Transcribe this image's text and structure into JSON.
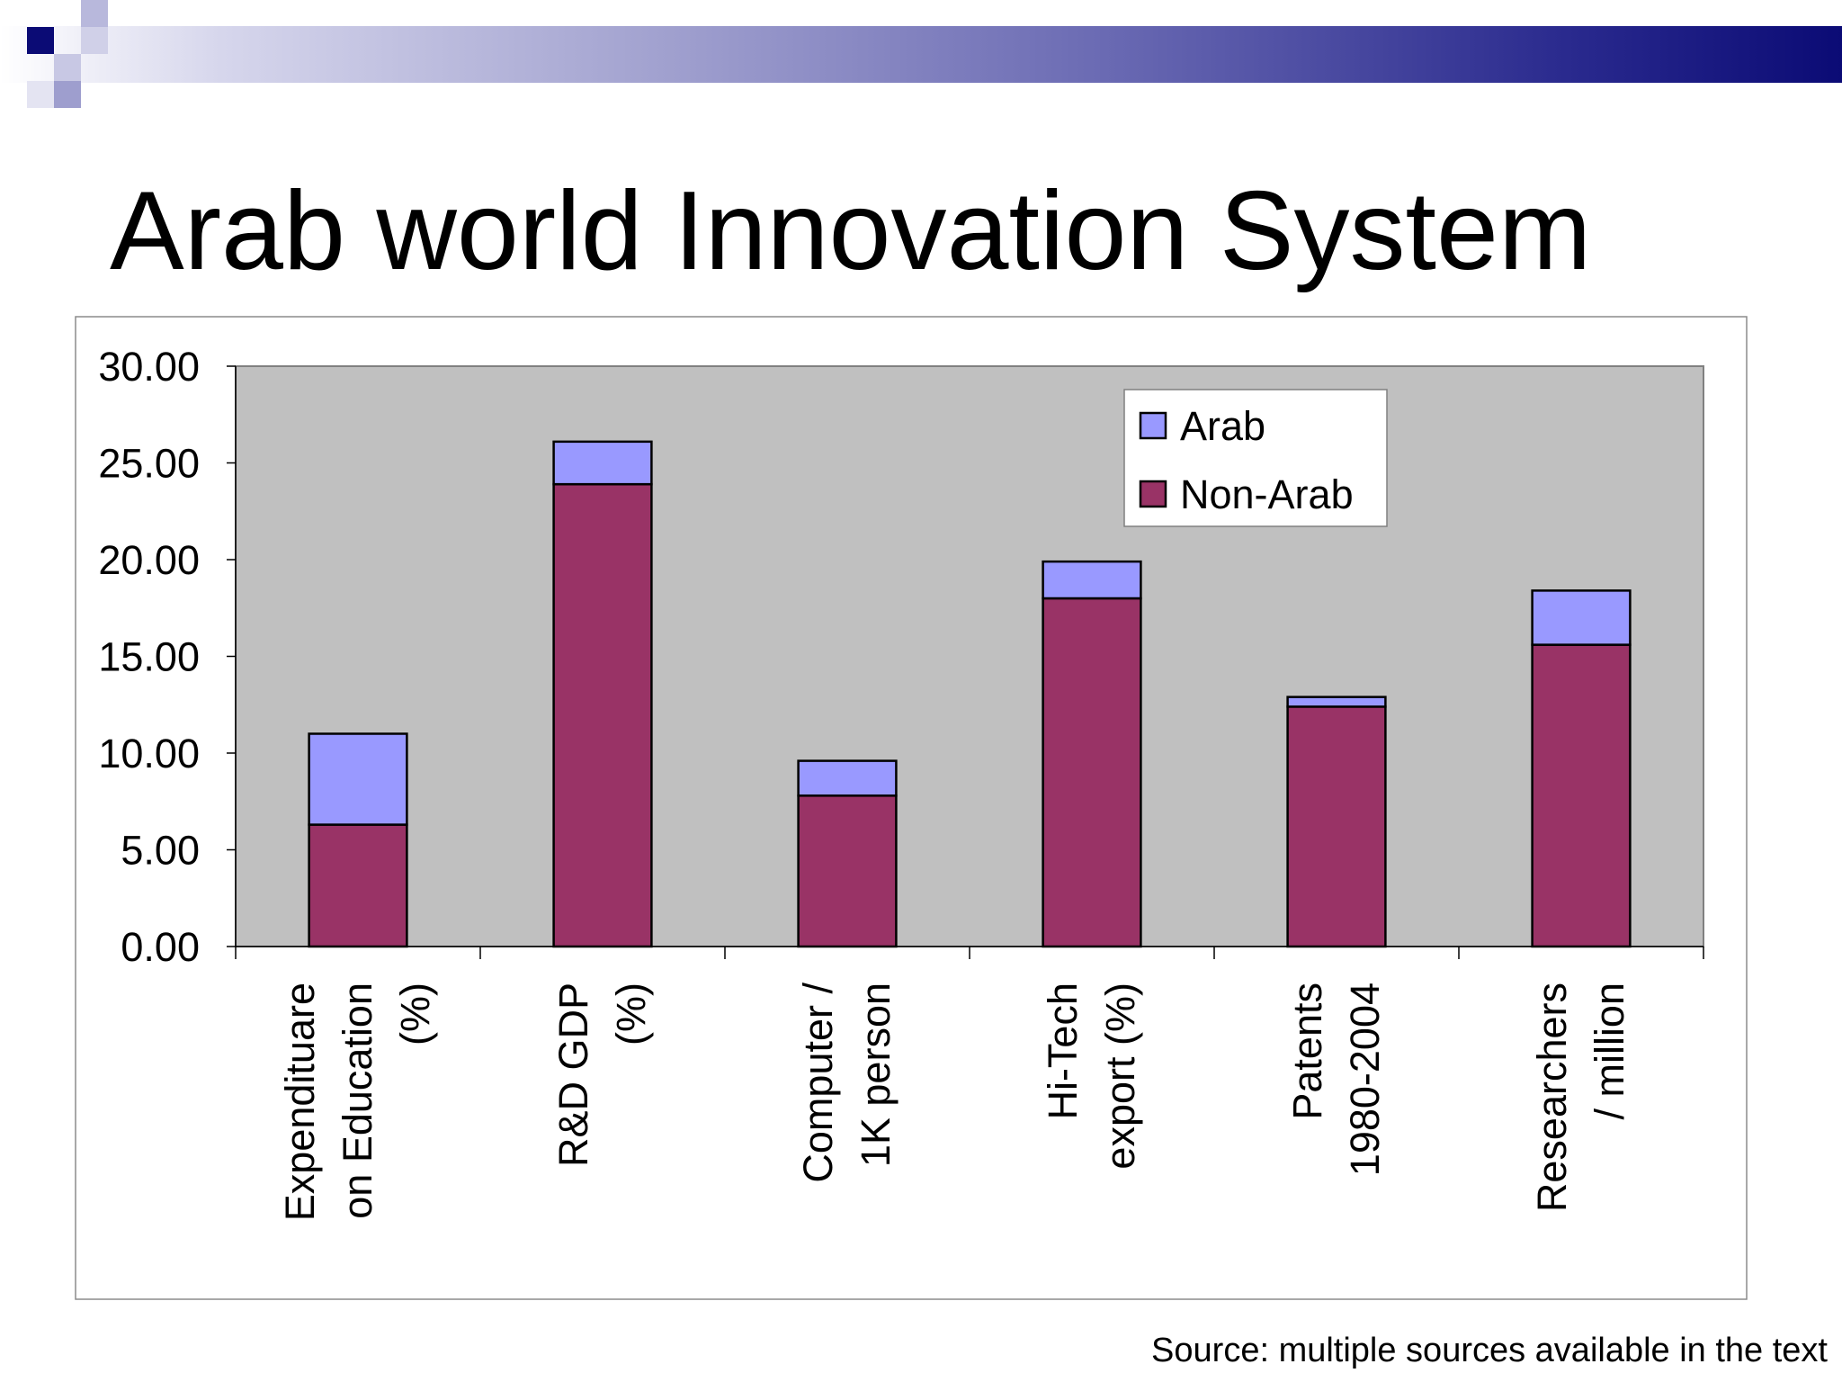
{
  "slide": {
    "title": "Arab world Innovation System",
    "source": "Source: multiple sources available in the text"
  },
  "colors": {
    "arab": "#9999ff",
    "non_arab": "#993366",
    "plot_background": "#c0c0c0",
    "band_dark": "#0b0b75"
  },
  "chart_data": {
    "type": "bar",
    "stacked": true,
    "categories": [
      [
        "Expendituare",
        "on Education",
        "(%)"
      ],
      [
        "R&D GDP",
        "(%)"
      ],
      [
        "Computer /",
        "1K person"
      ],
      [
        "Hi-Tech",
        "export (%)"
      ],
      [
        "Patents",
        "1980-2004"
      ],
      [
        "Researchers",
        "/ million"
      ]
    ],
    "series": [
      {
        "name": "Non-Arab",
        "color": "#993366",
        "values": [
          6.3,
          23.9,
          7.8,
          18.0,
          12.4,
          15.6
        ]
      },
      {
        "name": "Arab",
        "color": "#9999ff",
        "values": [
          4.7,
          2.2,
          1.8,
          1.9,
          0.5,
          2.8
        ]
      }
    ],
    "y_ticks": [
      "0.00",
      "5.00",
      "10.00",
      "15.00",
      "20.00",
      "25.00",
      "30.00"
    ],
    "ylim": [
      0,
      30
    ],
    "legend": {
      "position": "top-right",
      "entries": [
        "Arab",
        "Non-Arab"
      ]
    },
    "grid": false
  }
}
